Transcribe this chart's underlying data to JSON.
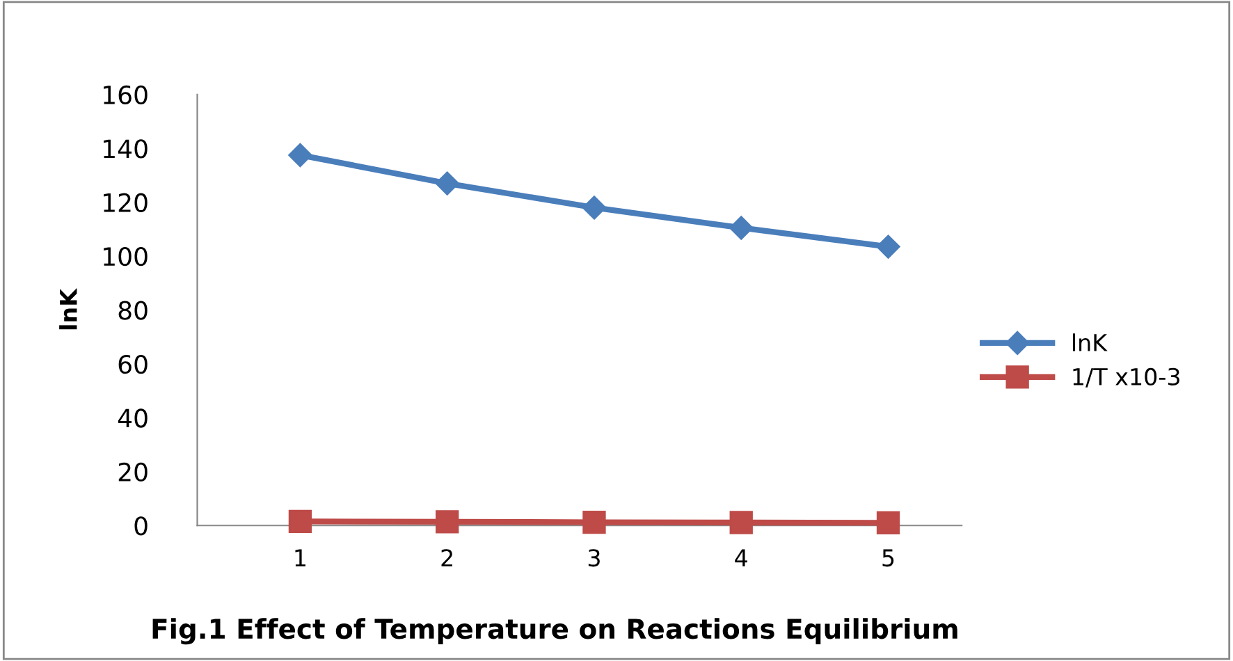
{
  "chart_data": {
    "type": "line",
    "title": "Fig.1 Effect of Temperature on Reactions Equilibrium",
    "ylabel": "lnK",
    "categories": [
      "1",
      "2",
      "3",
      "4",
      "5"
    ],
    "series": [
      {
        "name": "lnK",
        "color": "#4a7ebb",
        "marker": "diamond",
        "values": [
          137.5,
          127,
          118,
          110.5,
          103.5
        ]
      },
      {
        "name": "1/T x10-3",
        "color": "#be4b48",
        "marker": "square",
        "values": [
          1.5,
          1.4,
          1.2,
          1.1,
          1.0
        ]
      }
    ],
    "ylim": [
      0,
      160
    ],
    "yticks": [
      0,
      20,
      40,
      60,
      80,
      100,
      120,
      140,
      160
    ],
    "grid": false,
    "legend": "right",
    "line_style": "solid"
  }
}
